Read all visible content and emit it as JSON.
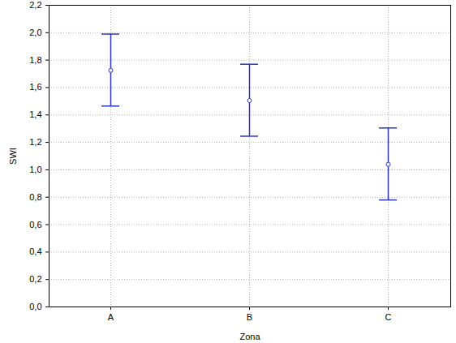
{
  "chart_data": {
    "type": "scatter",
    "x_label": "Zona",
    "y_label": "SWI",
    "categories": [
      "A",
      "B",
      "C"
    ],
    "values": [
      1.725,
      1.505,
      1.04
    ],
    "lower": [
      1.465,
      1.245,
      0.78
    ],
    "upper": [
      1.99,
      1.77,
      1.305
    ],
    "color": "#2b35c6",
    "marker": "circle",
    "ylim": [
      0,
      2.2
    ],
    "yticks": [
      {
        "value": 0,
        "label": "0,0"
      },
      {
        "value": 0.2,
        "label": "0,2"
      },
      {
        "value": 0.4,
        "label": "0,4"
      },
      {
        "value": 0.6,
        "label": "0,6"
      },
      {
        "value": 0.8,
        "label": "0,8"
      },
      {
        "value": 1.0,
        "label": "1,0"
      },
      {
        "value": 1.2,
        "label": "1,2"
      },
      {
        "value": 1.4,
        "label": "1,4"
      },
      {
        "value": 1.6,
        "label": "1,6"
      },
      {
        "value": 1.8,
        "label": "1,8"
      },
      {
        "value": 2.0,
        "label": "2,0"
      },
      {
        "value": 2.2,
        "label": "2,2"
      }
    ],
    "grid": true
  }
}
